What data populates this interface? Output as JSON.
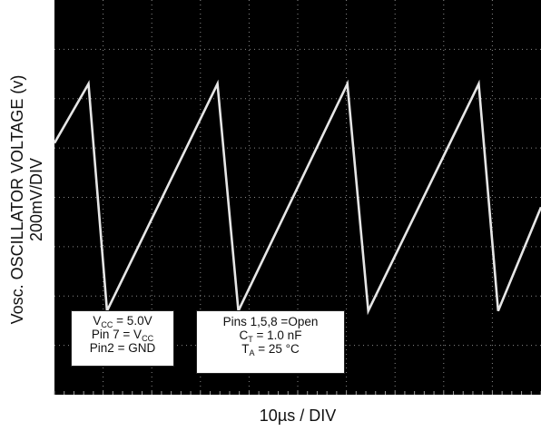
{
  "chart_data": {
    "type": "line",
    "title": "",
    "xlabel": "10µs / DIV",
    "ylabel": "Vosc. OSCILLATOR VOLTAGE (v)",
    "ylabel_sub": "200mV/DIV",
    "grid": true,
    "background": "#000000",
    "trace_color": "#e6e6e6",
    "x_unit": "div",
    "y_unit": "div",
    "xlim": [
      0,
      10
    ],
    "ylim": [
      0,
      8
    ],
    "series": [
      {
        "values": [
          {
            "x": 0.0,
            "y": 5.1
          },
          {
            "x": 0.7,
            "y": 6.3
          },
          {
            "x": 1.08,
            "y": 1.7
          },
          {
            "x": 3.35,
            "y": 6.3
          },
          {
            "x": 3.78,
            "y": 1.7
          },
          {
            "x": 6.02,
            "y": 6.3
          },
          {
            "x": 6.45,
            "y": 1.7
          },
          {
            "x": 8.72,
            "y": 6.3
          },
          {
            "x": 9.12,
            "y": 1.7
          },
          {
            "x": 10.0,
            "y": 3.8
          }
        ]
      }
    ],
    "annotations": {
      "box1": {
        "vcc": {
          "main": "V",
          "sub": "CC",
          "rest": " = 5.0V"
        },
        "pin7": {
          "main": "Pin 7 = V",
          "sub": "CC"
        },
        "pin2": "Pin2 = GND"
      },
      "box2": {
        "pins": "Pins 1,5,8 =Open",
        "ct": {
          "main": "C",
          "sub": "T",
          "rest": " = 1.0 nF"
        },
        "ta": {
          "main": "T",
          "sub": "A",
          "rest": " = 25 °C"
        }
      }
    }
  }
}
